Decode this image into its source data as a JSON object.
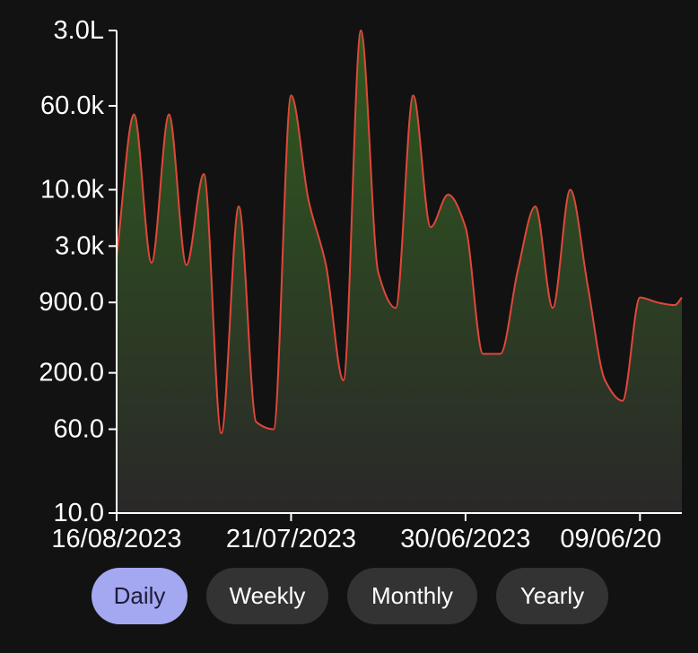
{
  "colors": {
    "background": "#121212",
    "line": "#e0473a",
    "fill_top": "#2f5b1e",
    "fill_bottom": "#2a2828",
    "axis": "#ffffff",
    "tab_active": "#a4a8f1",
    "tab_inactive": "#333333"
  },
  "chart_data": {
    "type": "area",
    "yscale": "log",
    "ylim": [
      10,
      300000
    ],
    "y_tick_labels": [
      "3.0L",
      "60.0k",
      "10.0k",
      "3.0k",
      "900.0",
      "200.0",
      "60.0",
      "10.0"
    ],
    "y_tick_values": [
      300000,
      60000,
      10000,
      3000,
      900,
      200,
      60,
      10
    ],
    "x_tick_labels": [
      "16/08/2023",
      "21/07/2023",
      "30/06/2023",
      "09/06/20"
    ],
    "x_direction": "newest-to-oldest",
    "xlim": [
      0,
      81
    ],
    "x_tick_values": [
      0,
      25,
      50,
      75
    ],
    "x": [
      0,
      2.5,
      5,
      7.5,
      10,
      12.5,
      15,
      17.5,
      20,
      22.5,
      25,
      27.5,
      30,
      32.5,
      35,
      37.5,
      40,
      42.5,
      45,
      47.5,
      50,
      52.5,
      55,
      57.5,
      60,
      62.5,
      65,
      67.5,
      70,
      72.5,
      75,
      77.5,
      80,
      81
    ],
    "values": [
      2400,
      50000,
      2100,
      50000,
      2000,
      14000,
      55,
      7000,
      70,
      60,
      75000,
      8000,
      2000,
      170,
      300000,
      1700,
      800,
      75000,
      4500,
      9000,
      4500,
      300,
      300,
      1800,
      7000,
      800,
      10000,
      1300,
      170,
      110,
      1000,
      900,
      850,
      1000
    ]
  },
  "tabs": [
    {
      "label": "Daily",
      "active": true
    },
    {
      "label": "Weekly",
      "active": false
    },
    {
      "label": "Monthly",
      "active": false
    },
    {
      "label": "Yearly",
      "active": false
    }
  ]
}
